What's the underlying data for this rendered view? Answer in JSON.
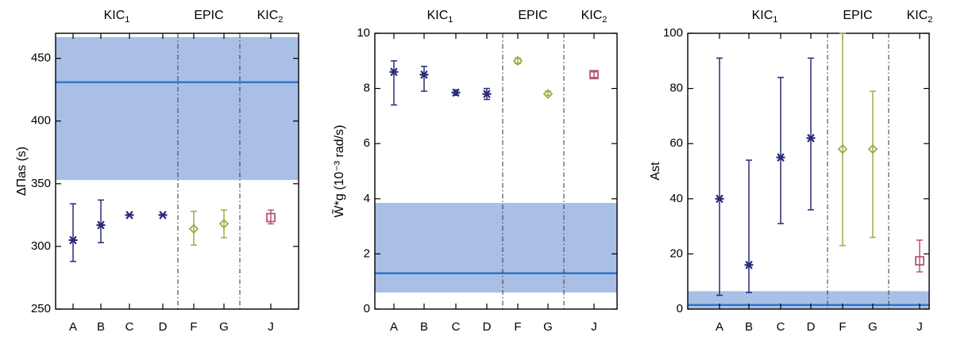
{
  "colors": {
    "kic": "#2a2a7a",
    "epic": "#9aae47",
    "kic2": "#b5557a",
    "band": "#a9bfe6",
    "model_line": "#2e73c9",
    "divider": "#444444",
    "axis": "#000000"
  },
  "chart_data": [
    {
      "type": "scatter",
      "panel": "left",
      "title": "",
      "groups": [
        "KIC1",
        "EPIC",
        "KIC2"
      ],
      "xlabel": "",
      "ylabel": "ΔΠas (s)",
      "categories": [
        "A",
        "B",
        "C",
        "D",
        "F",
        "G",
        "J"
      ],
      "ylim": [
        250,
        470
      ],
      "yticks": [
        "250",
        "300",
        "350",
        "400",
        "450"
      ],
      "grid": false,
      "series": [
        {
          "values": [
            305,
            317,
            325,
            325,
            314,
            318,
            323
          ],
          "err_low": [
            288,
            303,
            325,
            325,
            301,
            307,
            318
          ],
          "err_high": [
            334,
            337,
            325,
            325,
            328,
            329,
            329
          ]
        }
      ],
      "model": {
        "value": 431,
        "band": [
          353,
          467
        ]
      }
    },
    {
      "type": "scatter",
      "panel": "middle",
      "title": "",
      "groups": [
        "KIC1",
        "EPIC",
        "KIC2"
      ],
      "xlabel": "",
      "ylabel": "W̃*g (10⁻³ rad/s)",
      "categories": [
        "A",
        "B",
        "C",
        "D",
        "F",
        "G",
        "J"
      ],
      "ylim": [
        0,
        10
      ],
      "yticks": [
        "0",
        "2",
        "4",
        "6",
        "8",
        "10"
      ],
      "grid": false,
      "series": [
        {
          "values": [
            8.6,
            8.5,
            7.85,
            7.8,
            9.0,
            7.8,
            8.5
          ],
          "err_low": [
            7.4,
            7.9,
            7.75,
            7.6,
            8.9,
            7.75,
            8.4
          ],
          "err_high": [
            9.0,
            8.8,
            7.95,
            8.0,
            9.1,
            7.9,
            8.6
          ]
        }
      ],
      "model": {
        "value": 1.3,
        "band": [
          0.6,
          3.85
        ]
      }
    },
    {
      "type": "scatter",
      "panel": "right",
      "title": "",
      "groups": [
        "KIC1",
        "EPIC",
        "KIC2"
      ],
      "xlabel": "",
      "ylabel": "Ast",
      "categories": [
        "A",
        "B",
        "C",
        "D",
        "F",
        "G",
        "J"
      ],
      "ylim": [
        0,
        100
      ],
      "yticks": [
        "0",
        "20",
        "40",
        "60",
        "80",
        "100"
      ],
      "grid": false,
      "series": [
        {
          "values": [
            40,
            16,
            55,
            62,
            58,
            58,
            17.5
          ],
          "err_low": [
            5,
            6,
            31,
            36,
            23,
            26,
            13.5
          ],
          "err_high": [
            91,
            54,
            84,
            91,
            100,
            79,
            25
          ]
        }
      ],
      "model": {
        "value": 1.5,
        "band": [
          0,
          6.5
        ]
      }
    }
  ]
}
